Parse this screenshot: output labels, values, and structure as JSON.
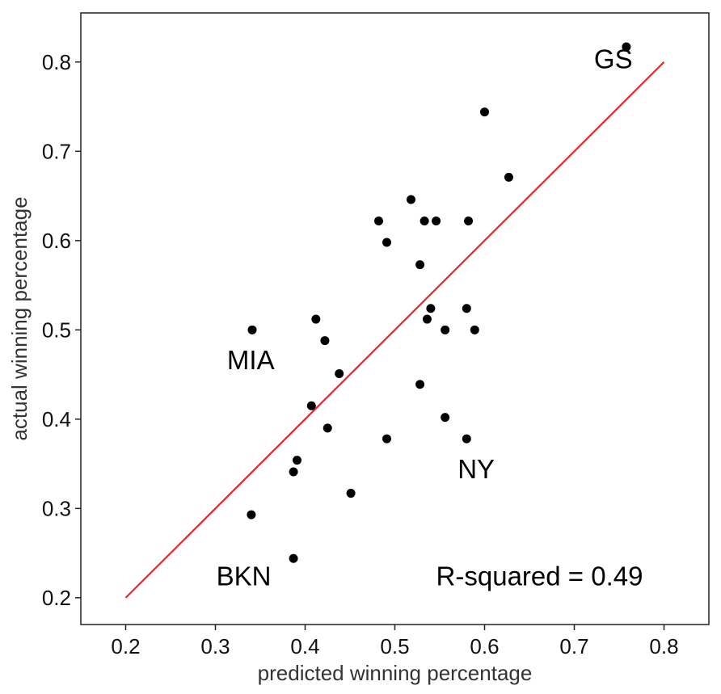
{
  "chart_data": {
    "type": "scatter",
    "title": "",
    "xlabel": "predicted winning percentage",
    "ylabel": "actual winning percentage",
    "xlim": [
      0.15,
      0.85
    ],
    "ylim": [
      0.17,
      0.855
    ],
    "xticks": [
      "0.2",
      "0.3",
      "0.4",
      "0.5",
      "0.6",
      "0.7",
      "0.8"
    ],
    "yticks": [
      "0.2",
      "0.3",
      "0.4",
      "0.5",
      "0.6",
      "0.7",
      "0.8"
    ],
    "grid": false,
    "point_color": "#000000",
    "series": [
      {
        "points": [
          {
            "x": 0.758,
            "y": 0.817
          },
          {
            "x": 0.6,
            "y": 0.744
          },
          {
            "x": 0.627,
            "y": 0.671
          },
          {
            "x": 0.518,
            "y": 0.646
          },
          {
            "x": 0.482,
            "y": 0.622
          },
          {
            "x": 0.533,
            "y": 0.622
          },
          {
            "x": 0.546,
            "y": 0.622
          },
          {
            "x": 0.582,
            "y": 0.622
          },
          {
            "x": 0.491,
            "y": 0.598
          },
          {
            "x": 0.528,
            "y": 0.573
          },
          {
            "x": 0.54,
            "y": 0.524
          },
          {
            "x": 0.58,
            "y": 0.524
          },
          {
            "x": 0.536,
            "y": 0.512
          },
          {
            "x": 0.412,
            "y": 0.512
          },
          {
            "x": 0.341,
            "y": 0.5
          },
          {
            "x": 0.556,
            "y": 0.5
          },
          {
            "x": 0.589,
            "y": 0.5
          },
          {
            "x": 0.422,
            "y": 0.488
          },
          {
            "x": 0.438,
            "y": 0.451
          },
          {
            "x": 0.528,
            "y": 0.439
          },
          {
            "x": 0.407,
            "y": 0.415
          },
          {
            "x": 0.556,
            "y": 0.402
          },
          {
            "x": 0.425,
            "y": 0.39
          },
          {
            "x": 0.491,
            "y": 0.378
          },
          {
            "x": 0.58,
            "y": 0.378
          },
          {
            "x": 0.391,
            "y": 0.354
          },
          {
            "x": 0.387,
            "y": 0.341
          },
          {
            "x": 0.451,
            "y": 0.317
          },
          {
            "x": 0.34,
            "y": 0.293
          },
          {
            "x": 0.387,
            "y": 0.244
          }
        ]
      }
    ],
    "reference_line": {
      "x": [
        0.2,
        0.8
      ],
      "y": [
        0.2,
        0.8
      ],
      "color": "#e8262b"
    },
    "annotations": [
      {
        "text": "GS",
        "x": 0.722,
        "y": 0.793
      },
      {
        "text": "MIA",
        "x": 0.313,
        "y": 0.456
      },
      {
        "text": "NY",
        "x": 0.57,
        "y": 0.334
      },
      {
        "text": "BKN",
        "x": 0.301,
        "y": 0.214
      },
      {
        "text": "R-squared = 0.49",
        "x": 0.546,
        "y": 0.214
      }
    ]
  }
}
